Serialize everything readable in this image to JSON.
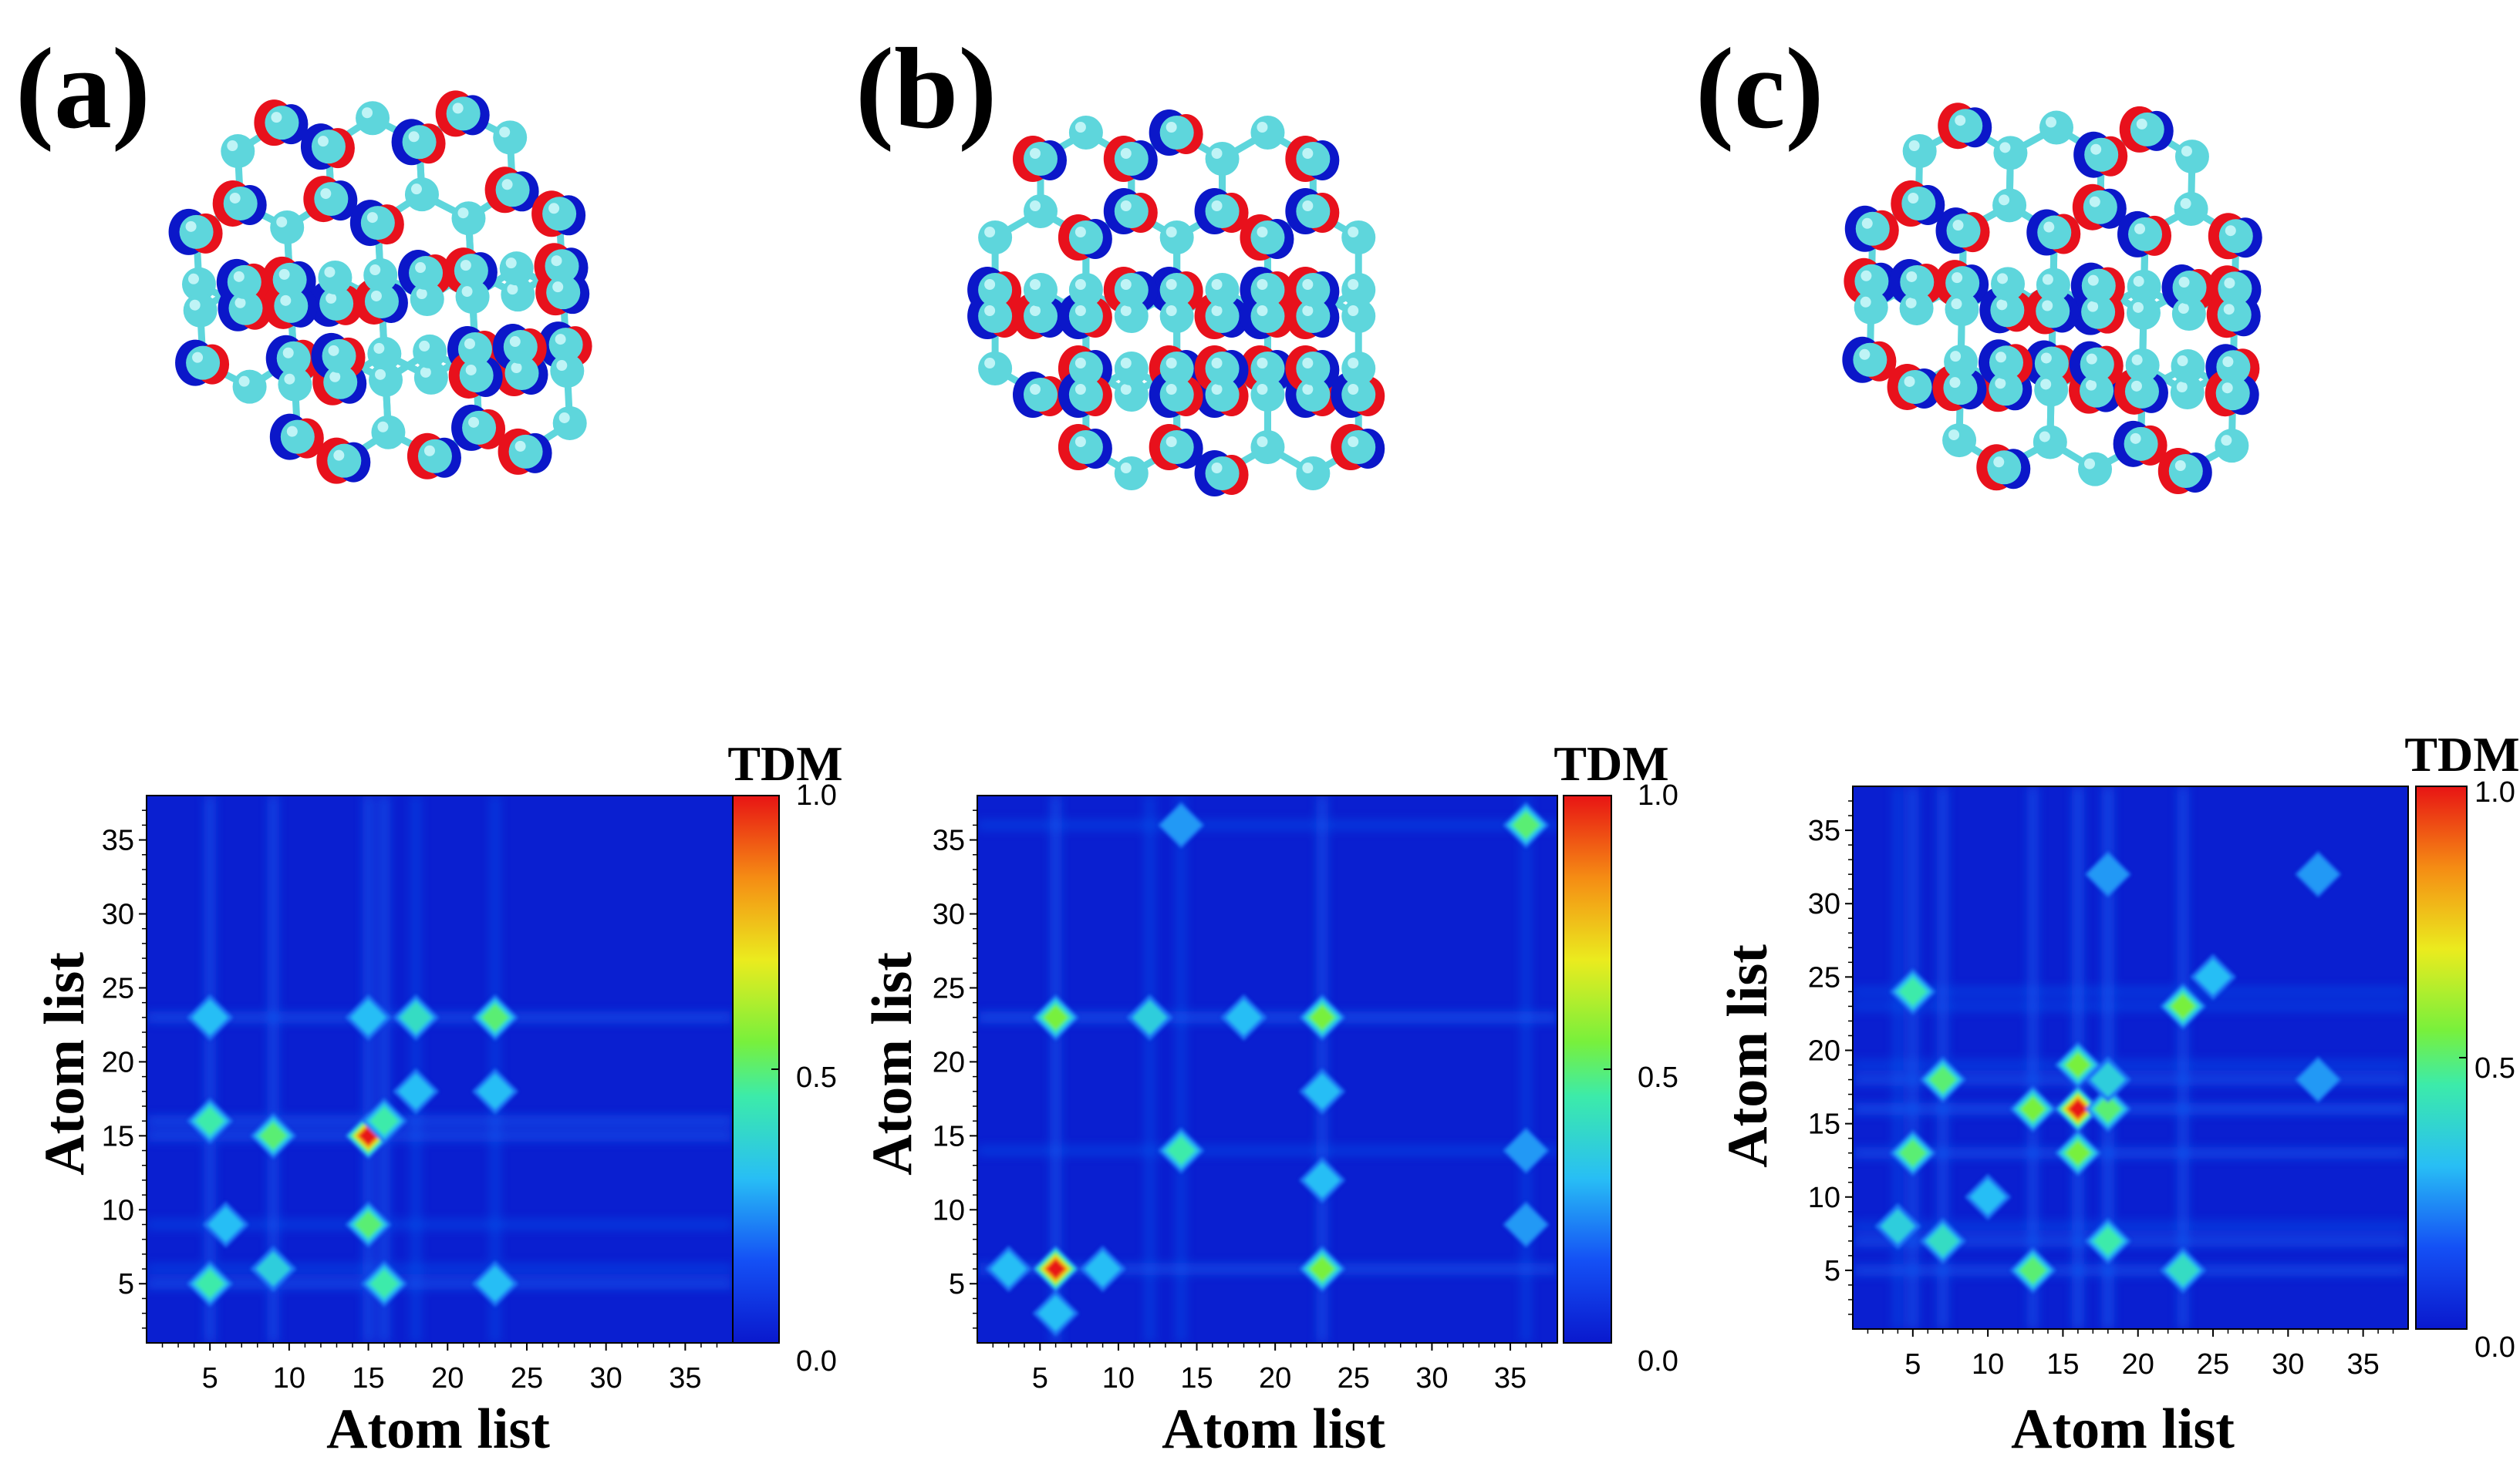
{
  "panels": [
    {
      "label": "(a)"
    },
    {
      "label": "(b)"
    },
    {
      "label": "(c)"
    }
  ],
  "colors": {
    "carbon": "#5ed6dc",
    "lobe_positive": "#e8111c",
    "lobe_negative": "#0b17c9",
    "heatmap_low": "#0a1fd0",
    "heatmap_high": "#e81010"
  },
  "chart_data": [
    {
      "type": "heatmap",
      "panel": "(a)",
      "xlabel": "Atom list",
      "ylabel": "Atom list",
      "colorbar_title": "TDM",
      "colorbar_ticks": [
        "1.0",
        "0.5",
        "0.0"
      ],
      "clim": [
        0,
        1
      ],
      "xlim": [
        1,
        38
      ],
      "ylim": [
        1,
        38
      ],
      "xticks": [
        "5",
        "10",
        "15",
        "20",
        "25",
        "30",
        "35"
      ],
      "yticks": [
        "5",
        "10",
        "15",
        "20",
        "25",
        "30",
        "35"
      ],
      "hotspots": [
        {
          "x": 15,
          "y": 15,
          "v": 1.0
        },
        {
          "x": 9,
          "y": 15,
          "v": 0.5
        },
        {
          "x": 15,
          "y": 9,
          "v": 0.5
        },
        {
          "x": 5,
          "y": 16,
          "v": 0.45
        },
        {
          "x": 16,
          "y": 16,
          "v": 0.45
        },
        {
          "x": 5,
          "y": 5,
          "v": 0.45
        },
        {
          "x": 16,
          "y": 5,
          "v": 0.45
        },
        {
          "x": 23,
          "y": 23,
          "v": 0.5
        },
        {
          "x": 18,
          "y": 23,
          "v": 0.4
        },
        {
          "x": 9,
          "y": 6,
          "v": 0.35
        },
        {
          "x": 6,
          "y": 9,
          "v": 0.3
        },
        {
          "x": 18,
          "y": 18,
          "v": 0.3
        },
        {
          "x": 23,
          "y": 18,
          "v": 0.3
        },
        {
          "x": 15,
          "y": 23,
          "v": 0.3
        },
        {
          "x": 5,
          "y": 23,
          "v": 0.3
        },
        {
          "x": 23,
          "y": 5,
          "v": 0.3
        }
      ]
    },
    {
      "type": "heatmap",
      "panel": "(b)",
      "xlabel": "Atom list",
      "ylabel": "Atom list",
      "colorbar_title": "TDM",
      "colorbar_ticks": [
        "1.0",
        "0.5",
        "0.0"
      ],
      "clim": [
        0,
        1
      ],
      "xlim": [
        1,
        38
      ],
      "ylim": [
        1,
        38
      ],
      "xticks": [
        "5",
        "10",
        "15",
        "20",
        "25",
        "30",
        "35"
      ],
      "yticks": [
        "5",
        "10",
        "15",
        "20",
        "25",
        "30",
        "35"
      ],
      "hotspots": [
        {
          "x": 6,
          "y": 6,
          "v": 1.0
        },
        {
          "x": 6,
          "y": 23,
          "v": 0.55
        },
        {
          "x": 23,
          "y": 23,
          "v": 0.55
        },
        {
          "x": 23,
          "y": 6,
          "v": 0.55
        },
        {
          "x": 36,
          "y": 36,
          "v": 0.5
        },
        {
          "x": 14,
          "y": 14,
          "v": 0.45
        },
        {
          "x": 12,
          "y": 23,
          "v": 0.35
        },
        {
          "x": 9,
          "y": 6,
          "v": 0.3
        },
        {
          "x": 23,
          "y": 12,
          "v": 0.3
        },
        {
          "x": 18,
          "y": 23,
          "v": 0.3
        },
        {
          "x": 3,
          "y": 6,
          "v": 0.3
        },
        {
          "x": 6,
          "y": 3,
          "v": 0.3
        },
        {
          "x": 23,
          "y": 18,
          "v": 0.3
        },
        {
          "x": 36,
          "y": 14,
          "v": 0.25
        },
        {
          "x": 14,
          "y": 36,
          "v": 0.25
        },
        {
          "x": 36,
          "y": 9,
          "v": 0.25
        }
      ]
    },
    {
      "type": "heatmap",
      "panel": "(c)",
      "xlabel": "Atom list",
      "ylabel": "Atom list",
      "colorbar_title": "TDM",
      "colorbar_ticks": [
        "1.0",
        "0.5",
        "0.0"
      ],
      "clim": [
        0,
        1
      ],
      "xlim": [
        1,
        38
      ],
      "ylim": [
        1,
        38
      ],
      "xticks": [
        "5",
        "10",
        "15",
        "20",
        "25",
        "30",
        "35"
      ],
      "yticks": [
        "5",
        "10",
        "15",
        "20",
        "25",
        "30",
        "35"
      ],
      "hotspots": [
        {
          "x": 16,
          "y": 16,
          "v": 1.0
        },
        {
          "x": 16,
          "y": 13,
          "v": 0.55
        },
        {
          "x": 16,
          "y": 19,
          "v": 0.55
        },
        {
          "x": 13,
          "y": 16,
          "v": 0.55
        },
        {
          "x": 18,
          "y": 16,
          "v": 0.5
        },
        {
          "x": 23,
          "y": 23,
          "v": 0.55
        },
        {
          "x": 7,
          "y": 18,
          "v": 0.5
        },
        {
          "x": 5,
          "y": 13,
          "v": 0.5
        },
        {
          "x": 5,
          "y": 24,
          "v": 0.45
        },
        {
          "x": 13,
          "y": 5,
          "v": 0.5
        },
        {
          "x": 18,
          "y": 7,
          "v": 0.45
        },
        {
          "x": 7,
          "y": 7,
          "v": 0.4
        },
        {
          "x": 23,
          "y": 5,
          "v": 0.4
        },
        {
          "x": 4,
          "y": 8,
          "v": 0.35
        },
        {
          "x": 10,
          "y": 10,
          "v": 0.3
        },
        {
          "x": 25,
          "y": 25,
          "v": 0.3
        },
        {
          "x": 18,
          "y": 18,
          "v": 0.35
        },
        {
          "x": 32,
          "y": 32,
          "v": 0.25
        },
        {
          "x": 32,
          "y": 18,
          "v": 0.25
        },
        {
          "x": 18,
          "y": 32,
          "v": 0.25
        }
      ]
    }
  ]
}
